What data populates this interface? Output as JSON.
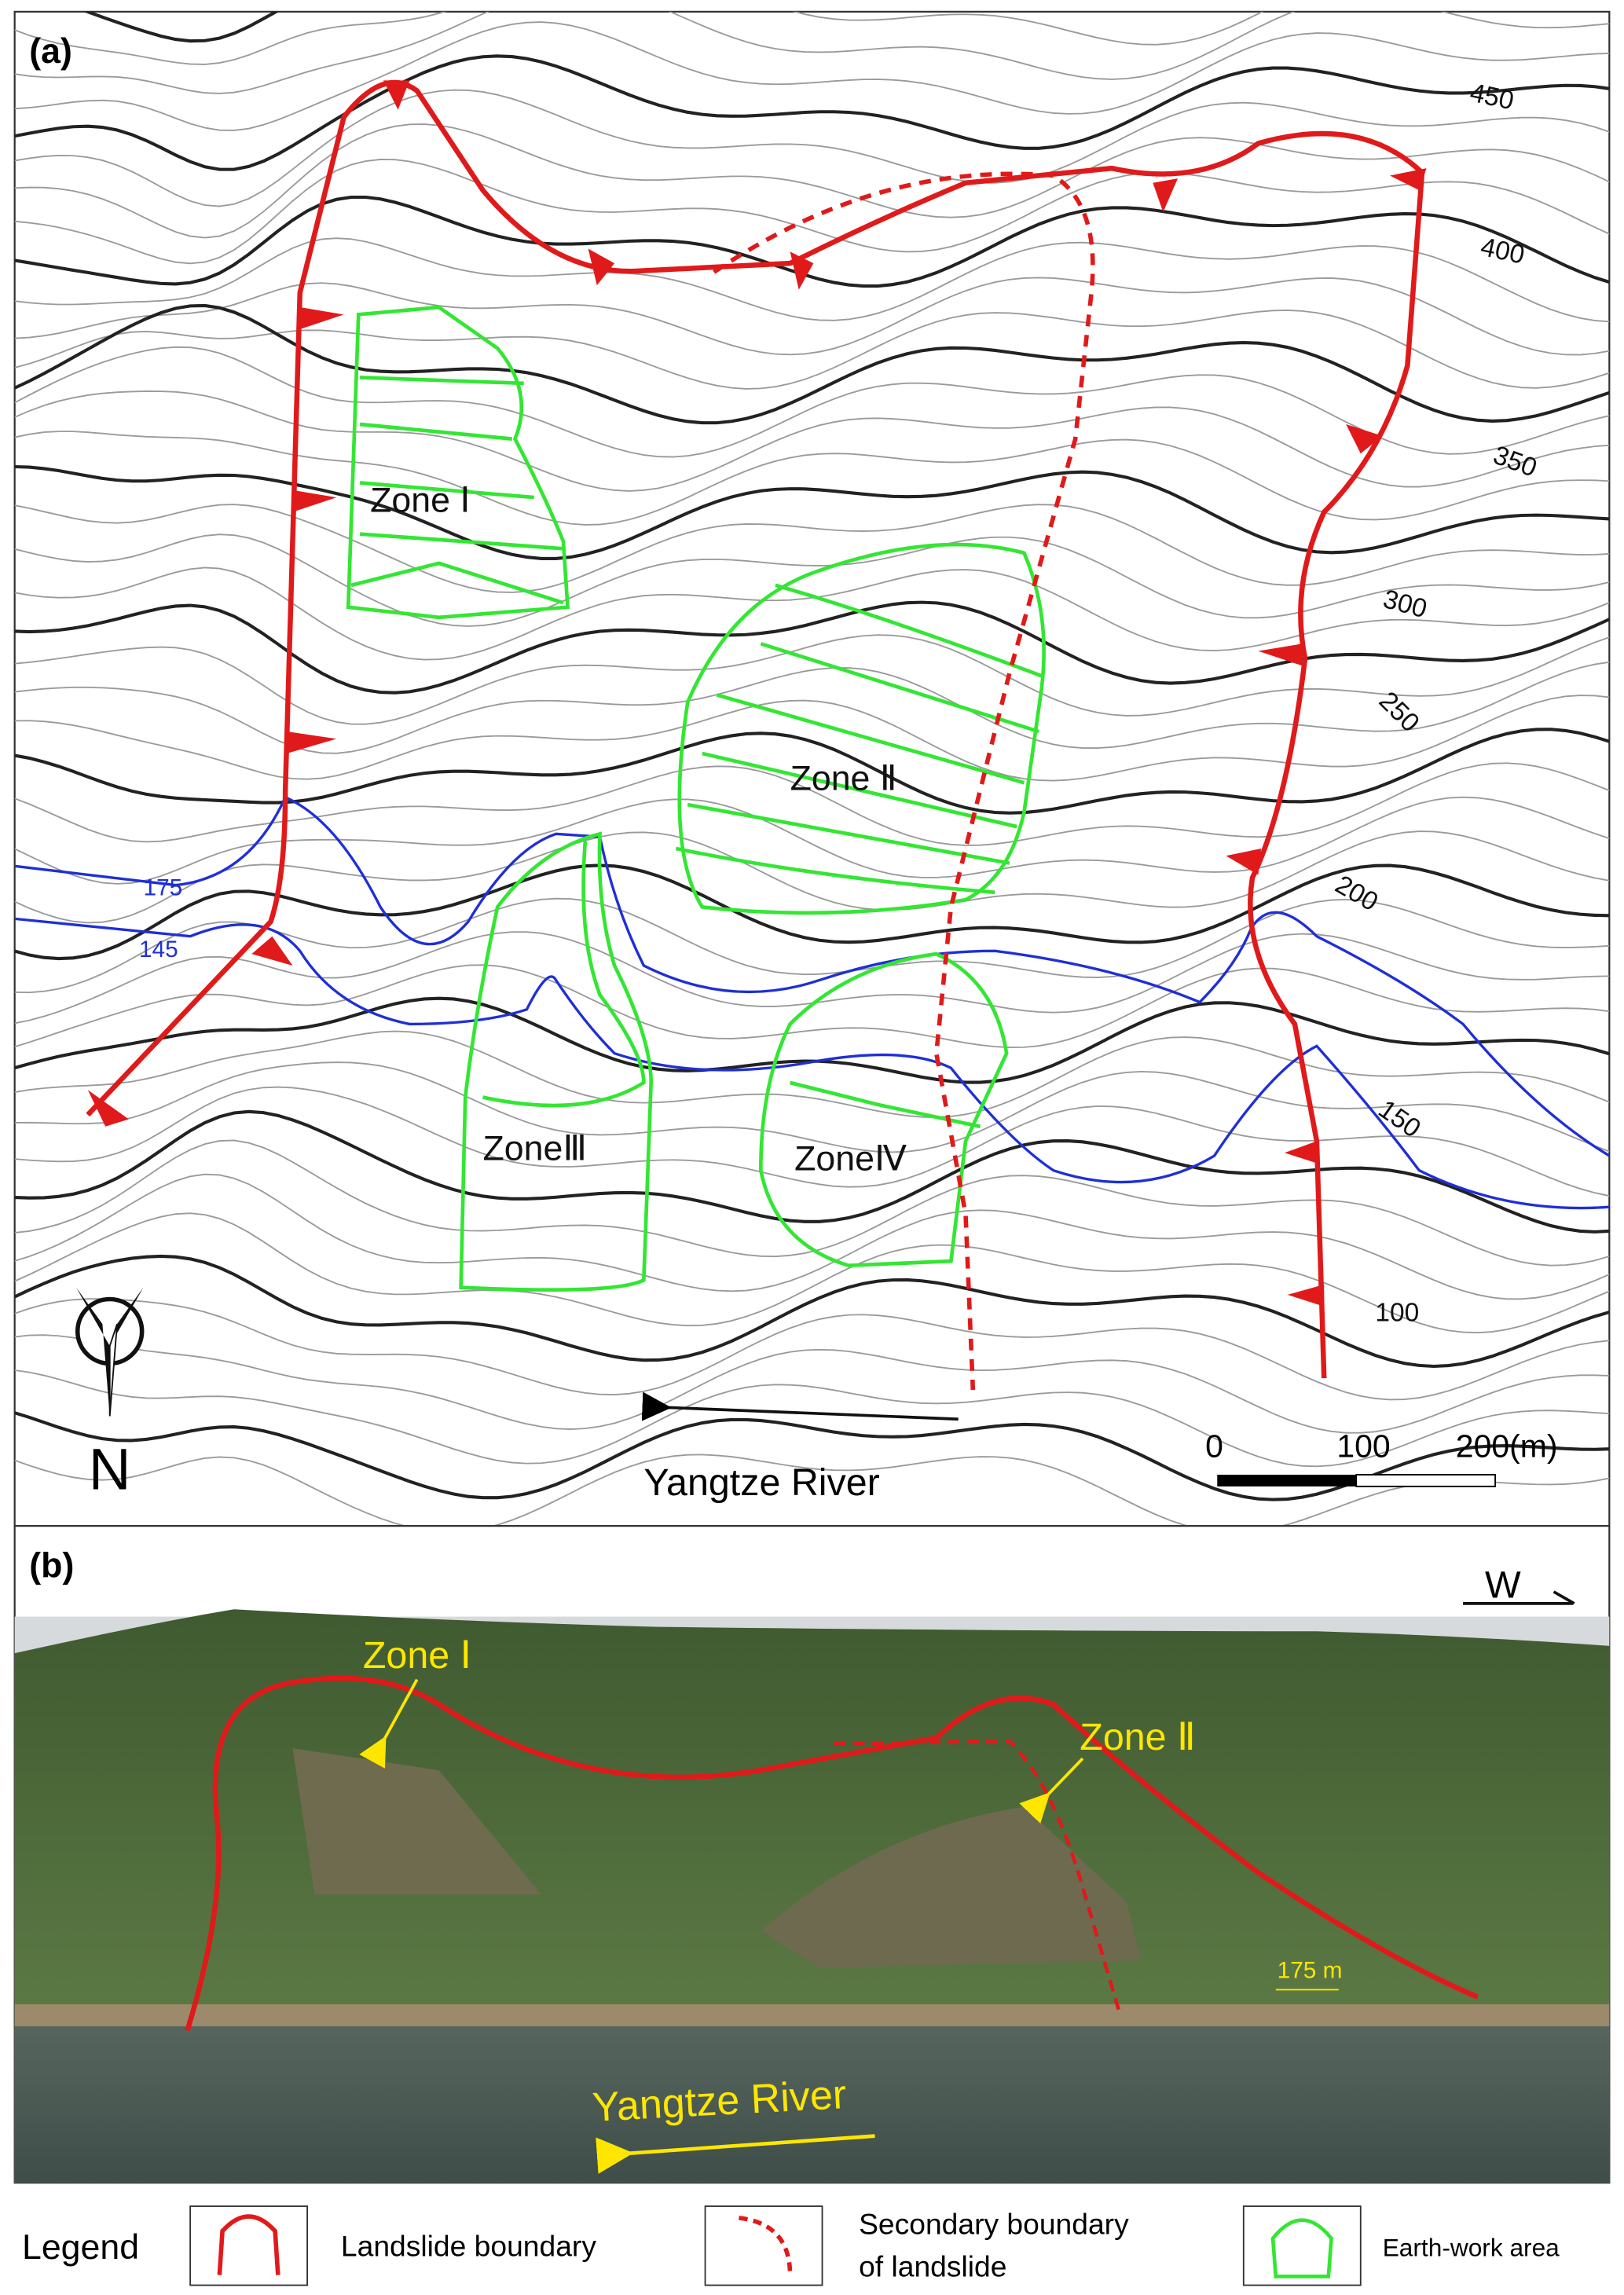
{
  "panel_a": {
    "label": "(a)",
    "contour_labels": [
      "450",
      "400",
      "350",
      "300",
      "250",
      "200",
      "150",
      "100"
    ],
    "water_levels": [
      "175",
      "145"
    ],
    "zones": [
      "Zone Ⅰ",
      "Zone Ⅱ",
      "ZoneⅢ",
      "ZoneⅣ"
    ],
    "north": "N",
    "river": "Yangtze River",
    "scale": [
      "0",
      "100",
      "200(m)"
    ]
  },
  "panel_b": {
    "label": "(b)",
    "direction": "W",
    "zones": [
      "Zone Ⅰ",
      "Zone Ⅱ"
    ],
    "water_level": "175 m",
    "river": "Yangtze River"
  },
  "legend": {
    "title": "Legend",
    "items": [
      [
        "Landslide boundary"
      ],
      [
        "Secondary boundary",
        "of landslide"
      ],
      [
        "Earth-work area"
      ]
    ]
  }
}
